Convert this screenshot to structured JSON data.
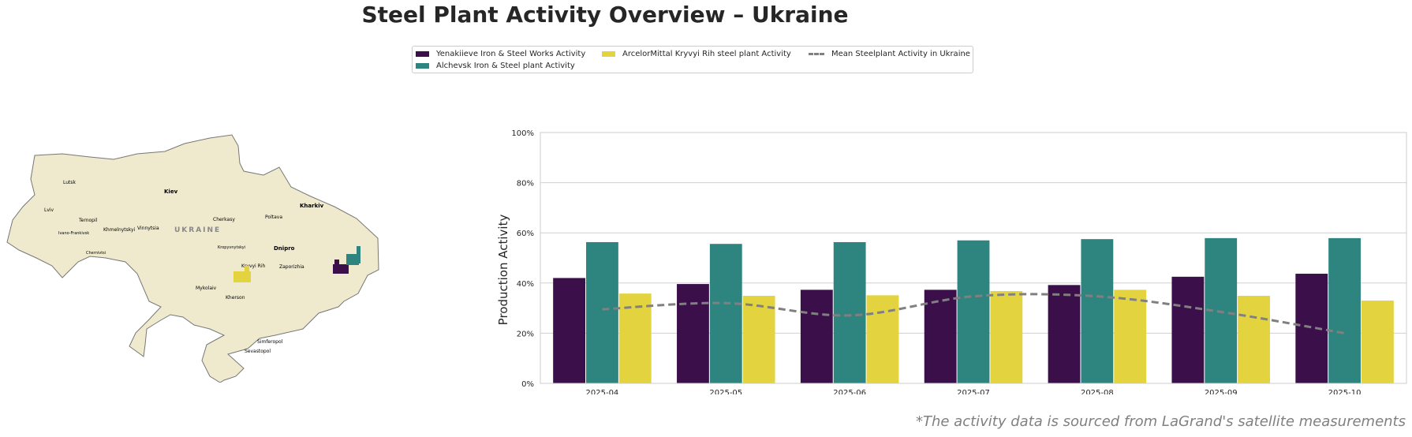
{
  "title": "Steel Plant Activity Overview – Ukraine",
  "legend": {
    "items": [
      {
        "label": "Yenakiieve Iron & Steel Works Activity",
        "color": "#3b0f4a",
        "kind": "bar"
      },
      {
        "label": "Alchevsk Iron & Steel plant Activity",
        "color": "#2e8580",
        "kind": "bar"
      },
      {
        "label": "ArcelorMittal Kryvyi Rih steel plant Activity",
        "color": "#e2d33f",
        "kind": "bar"
      },
      {
        "label": "Mean Steelplant Activity in Ukraine",
        "color": "#808080",
        "kind": "dashed-line"
      }
    ]
  },
  "map": {
    "country_label": "UKRAINE",
    "cities": [
      "Lutsk",
      "Kiev",
      "Lviv",
      "Ternopil",
      "Ivano-Frankivsk",
      "Khmelnytskyi",
      "Vinnytsia",
      "Cherkasy",
      "Poltava",
      "Kharkiv",
      "Chernivtsi",
      "Kropyvnytskyi",
      "Dnipro",
      "Kryvyi Rih",
      "Zaporizhia",
      "Mykolaiv",
      "Kherson",
      "Simferopol",
      "Sevastopol"
    ]
  },
  "chart_data": {
    "type": "bar",
    "title": "",
    "xlabel": "",
    "ylabel": "Production Activity",
    "ylim": [
      0,
      100
    ],
    "yticks": [
      "0%",
      "20%",
      "40%",
      "60%",
      "80%",
      "100%"
    ],
    "grid": true,
    "legend_position": "top-center",
    "categories": [
      "2025-04",
      "2025-05",
      "2025-06",
      "2025-07",
      "2025-08",
      "2025-09",
      "2025-10"
    ],
    "series": [
      {
        "name": "Yenakiieve Iron & Steel Works Activity",
        "type": "bar",
        "color": "#3b0f4a",
        "values": [
          42,
          39.6,
          37.3,
          37.3,
          39.2,
          42.5,
          43.7
        ]
      },
      {
        "name": "Alchevsk Iron & Steel plant Activity",
        "type": "bar",
        "color": "#2e8580",
        "values": [
          56.3,
          55.6,
          56.3,
          57,
          57.5,
          57.9,
          57.9
        ]
      },
      {
        "name": "ArcelorMittal Kryvyi Rih steel plant Activity",
        "type": "bar",
        "color": "#e2d33f",
        "values": [
          35.8,
          34.9,
          35.1,
          36.8,
          37.3,
          34.9,
          33
        ]
      },
      {
        "name": "Mean Steelplant Activity in Ukraine",
        "type": "line",
        "style": "dashed",
        "color": "#808080",
        "values": [
          29.5,
          32,
          27.1,
          34.7,
          34.7,
          28.5,
          20
        ]
      }
    ]
  },
  "footer": "*The activity data is sourced from LaGrand's satellite measurements"
}
